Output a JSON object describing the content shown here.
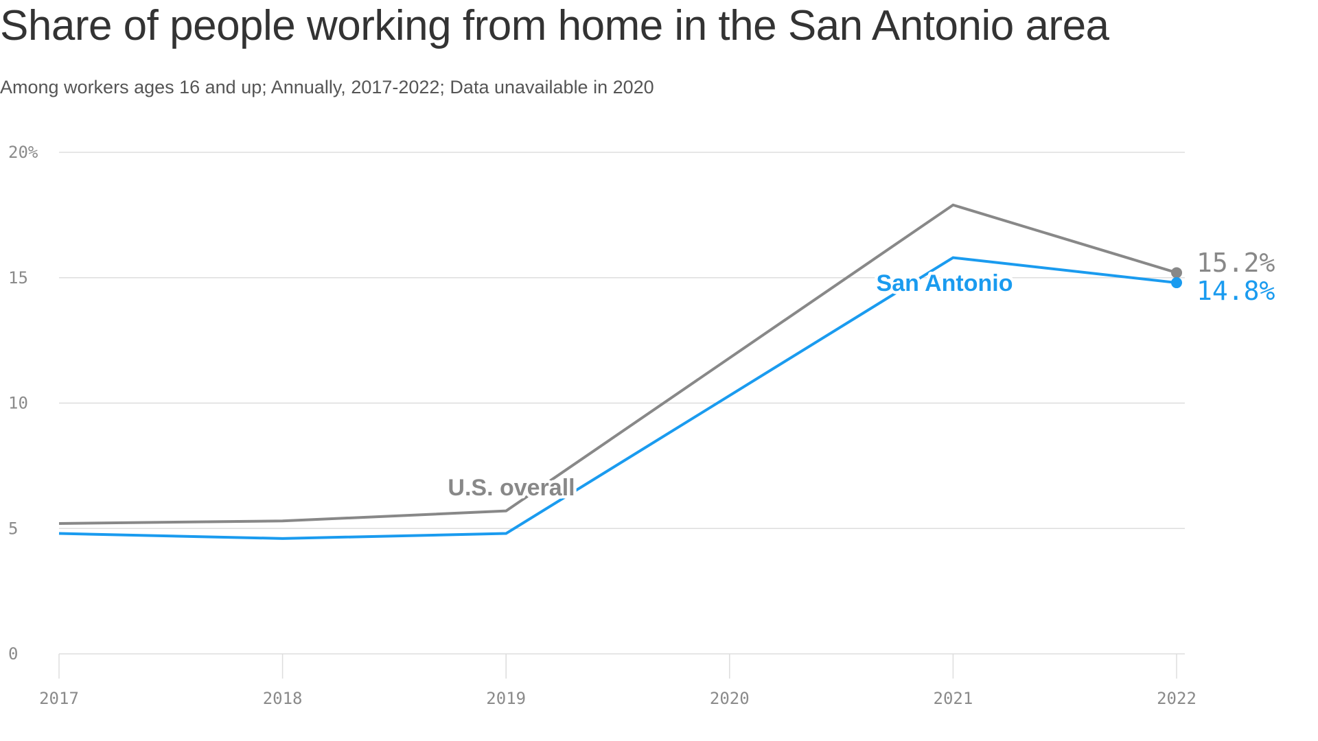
{
  "chart_data": {
    "type": "line",
    "title": "Share of people working from home in the San Antonio area",
    "subtitle": "Among workers ages 16 and up; Annually, 2017-2022; Data unavailable in 2020",
    "x": [
      "2017",
      "2018",
      "2019",
      "2020",
      "2021",
      "2022"
    ],
    "y_ticks": [
      "0",
      "5",
      "10",
      "15",
      "20%"
    ],
    "ylim": [
      0,
      20
    ],
    "grid": true,
    "series": [
      {
        "name": "U.S. overall",
        "color": "#888888",
        "values": [
          5.2,
          5.3,
          5.7,
          null,
          17.9,
          15.2
        ],
        "end_label": "15.2%"
      },
      {
        "name": "San Antonio",
        "color": "#1a9bef",
        "values": [
          4.8,
          4.6,
          4.8,
          null,
          15.8,
          14.8
        ],
        "end_label": "14.8%"
      }
    ]
  }
}
